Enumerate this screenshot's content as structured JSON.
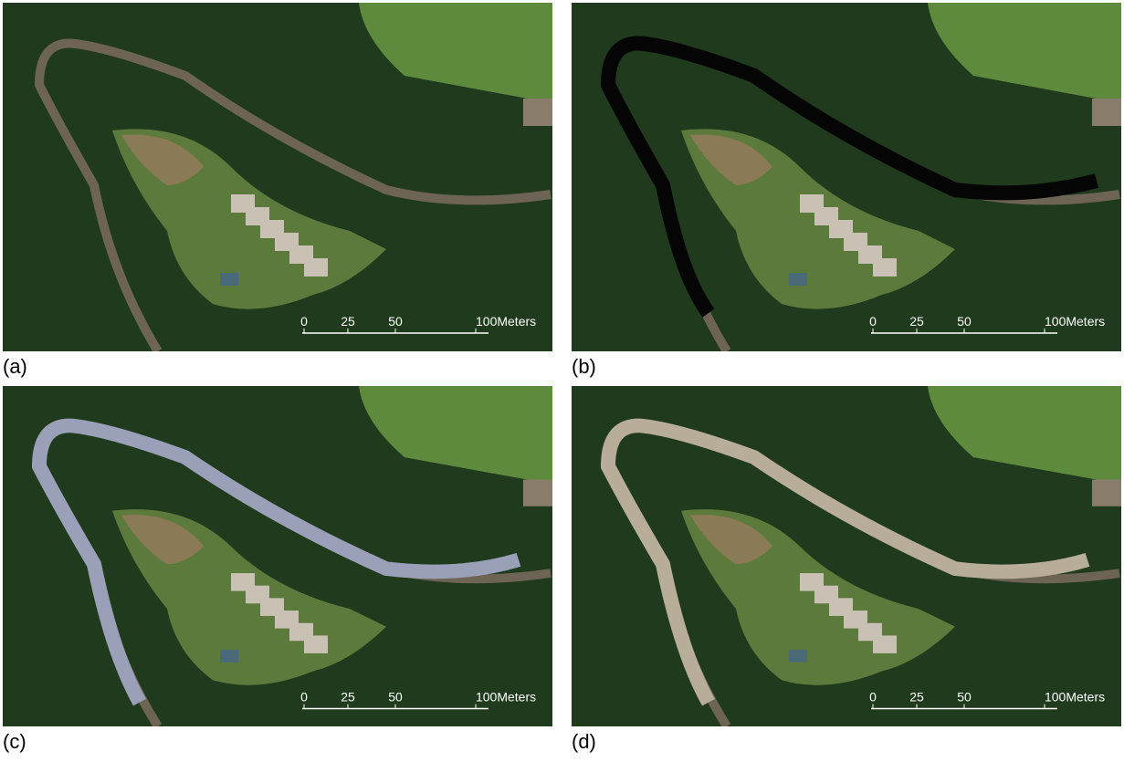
{
  "panels": [
    {
      "label": "(a)",
      "scale": [
        "0",
        "25",
        "50",
        "100Meters"
      ]
    },
    {
      "label": "(b)",
      "scale": [
        "0",
        "25",
        "50",
        "100Meters"
      ]
    },
    {
      "label": "(c)",
      "scale": [
        "0",
        "25",
        "50",
        "100Meters"
      ]
    },
    {
      "label": "(d)",
      "scale": [
        "0",
        "25",
        "50",
        "100Meters"
      ]
    }
  ]
}
